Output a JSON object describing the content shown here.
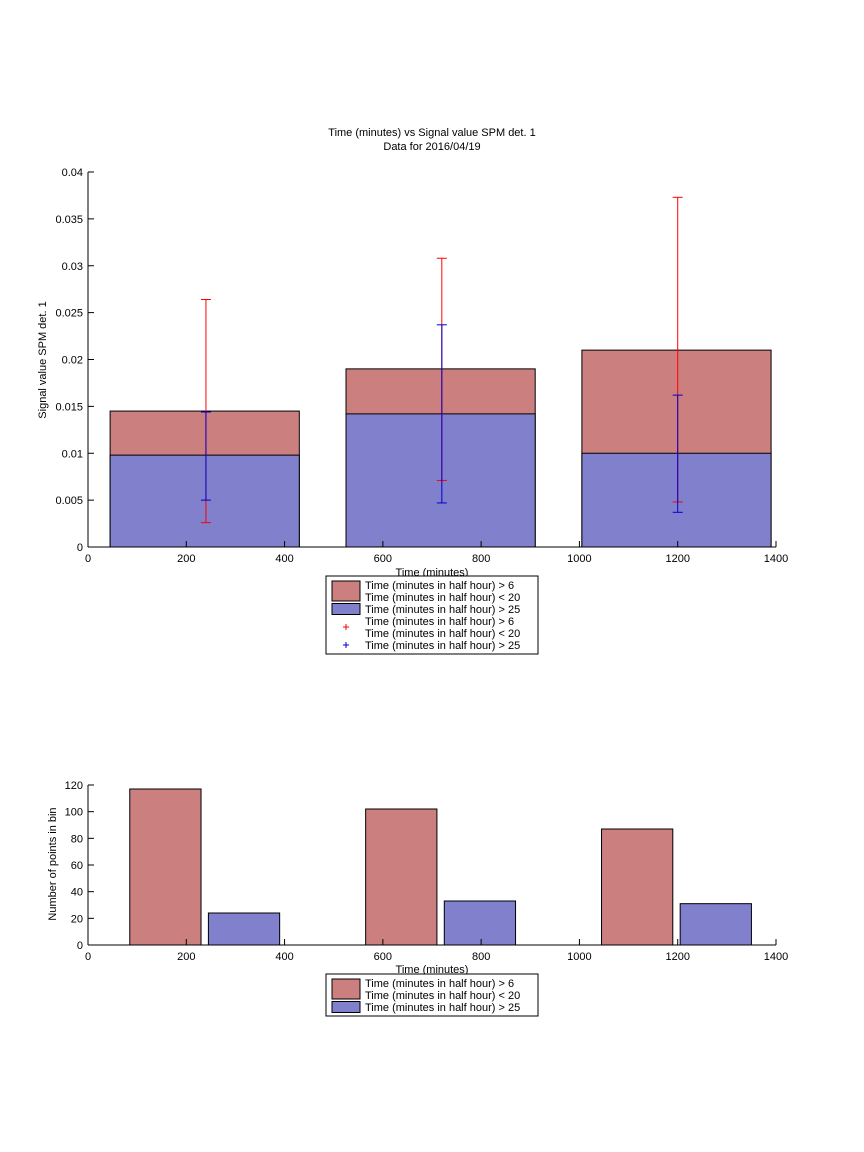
{
  "chart_data": [
    {
      "type": "bar",
      "title": "Time (minutes) vs Signal value SPM det. 1",
      "subtitle": "Data for 2016/04/19",
      "xlabel": "Time (minutes)",
      "ylabel": "Signal value SPM det. 1",
      "xlim": [
        0,
        1400
      ],
      "ylim": [
        0,
        0.04
      ],
      "xticks": [
        0,
        200,
        400,
        600,
        800,
        1000,
        1200,
        1400
      ],
      "xtick_labels": [
        "0",
        "200",
        "400",
        "600",
        "800",
        "1000",
        "1200",
        "1400"
      ],
      "yticks": [
        0,
        0.005,
        0.01,
        0.015,
        0.02,
        0.025,
        0.03,
        0.035,
        0.04
      ],
      "ytick_labels": [
        "0",
        "0.005",
        "0.01",
        "0.015",
        "0.02",
        "0.025",
        "0.03",
        "0.035",
        "0.04"
      ],
      "bars": [
        {
          "x0": 45,
          "x1": 430
        },
        {
          "x0": 525,
          "x1": 910
        },
        {
          "x0": 1005,
          "x1": 1390
        }
      ],
      "series": [
        {
          "name": "Time (minutes in half hour) > 6\nTime (minutes in half hour) < 20",
          "color": "#cb7f7f",
          "values": [
            0.0145,
            0.019,
            0.021
          ]
        },
        {
          "name": "Time (minutes in half hour) > 25",
          "color": "#8080cc",
          "values": [
            0.0098,
            0.0142,
            0.01
          ]
        }
      ],
      "errorbars": [
        {
          "name": "Time (minutes in half hour) > 6\nTime (minutes in half hour) < 20",
          "color": "#ff0000",
          "x": [
            240,
            720,
            1200
          ],
          "lower": [
            0.0026,
            0.0071,
            0.0048
          ],
          "upper": [
            0.0264,
            0.0308,
            0.0373
          ]
        },
        {
          "name": "Time (minutes in half hour) > 25",
          "color": "#0000cc",
          "x": [
            240,
            720,
            1200
          ],
          "lower": [
            0.005,
            0.0047,
            0.0037
          ],
          "upper": [
            0.0144,
            0.0237,
            0.0162
          ]
        }
      ],
      "legend": {
        "placement": "below",
        "entries": [
          {
            "kind": "patch",
            "color": "#cb7f7f",
            "lines": [
              "Time (minutes in half hour) > 6",
              "Time (minutes in half hour) < 20"
            ]
          },
          {
            "kind": "patch",
            "color": "#8080cc",
            "lines": [
              "Time (minutes in half hour) > 25"
            ]
          },
          {
            "kind": "marker",
            "color": "#ff0000",
            "lines": [
              "Time (minutes in half hour) > 6",
              "Time (minutes in half hour) < 20"
            ]
          },
          {
            "kind": "marker",
            "color": "#0000cc",
            "lines": [
              "Time (minutes in half hour) > 25"
            ]
          }
        ]
      }
    },
    {
      "type": "bar",
      "title": "",
      "xlabel": "Time (minutes)",
      "ylabel": "Number of points in bin",
      "xlim": [
        0,
        1400
      ],
      "ylim": [
        0,
        120
      ],
      "xticks": [
        0,
        200,
        400,
        600,
        800,
        1000,
        1200,
        1400
      ],
      "xtick_labels": [
        "0",
        "200",
        "400",
        "600",
        "800",
        "1000",
        "1200",
        "1400"
      ],
      "yticks": [
        0,
        20,
        40,
        60,
        80,
        100,
        120
      ],
      "ytick_labels": [
        "0",
        "20",
        "40",
        "60",
        "80",
        "100",
        "120"
      ],
      "bars": [
        {
          "x0": 85,
          "x1": 230,
          "value": 117,
          "color": "#cb7f7f"
        },
        {
          "x0": 245,
          "x1": 390,
          "value": 24,
          "color": "#8080cc"
        },
        {
          "x0": 565,
          "x1": 710,
          "value": 102,
          "color": "#cb7f7f"
        },
        {
          "x0": 725,
          "x1": 870,
          "value": 33,
          "color": "#8080cc"
        },
        {
          "x0": 1045,
          "x1": 1190,
          "value": 87,
          "color": "#cb7f7f"
        },
        {
          "x0": 1205,
          "x1": 1350,
          "value": 31,
          "color": "#8080cc"
        }
      ],
      "series": [
        {
          "name": "Time (minutes in half hour) > 6\nTime (minutes in half hour) < 20",
          "color": "#cb7f7f",
          "x": [
            157,
            637,
            1117
          ],
          "values": [
            117,
            102,
            87
          ]
        },
        {
          "name": "Time (minutes in half hour) > 25",
          "color": "#8080cc",
          "x": [
            317,
            797,
            1277
          ],
          "values": [
            24,
            33,
            31
          ]
        }
      ],
      "legend": {
        "placement": "below",
        "entries": [
          {
            "kind": "patch",
            "color": "#cb7f7f",
            "lines": [
              "Time (minutes in half hour) > 6",
              "Time (minutes in half hour) < 20"
            ]
          },
          {
            "kind": "patch",
            "color": "#8080cc",
            "lines": [
              "Time (minutes in half hour) > 25"
            ]
          }
        ]
      }
    }
  ]
}
